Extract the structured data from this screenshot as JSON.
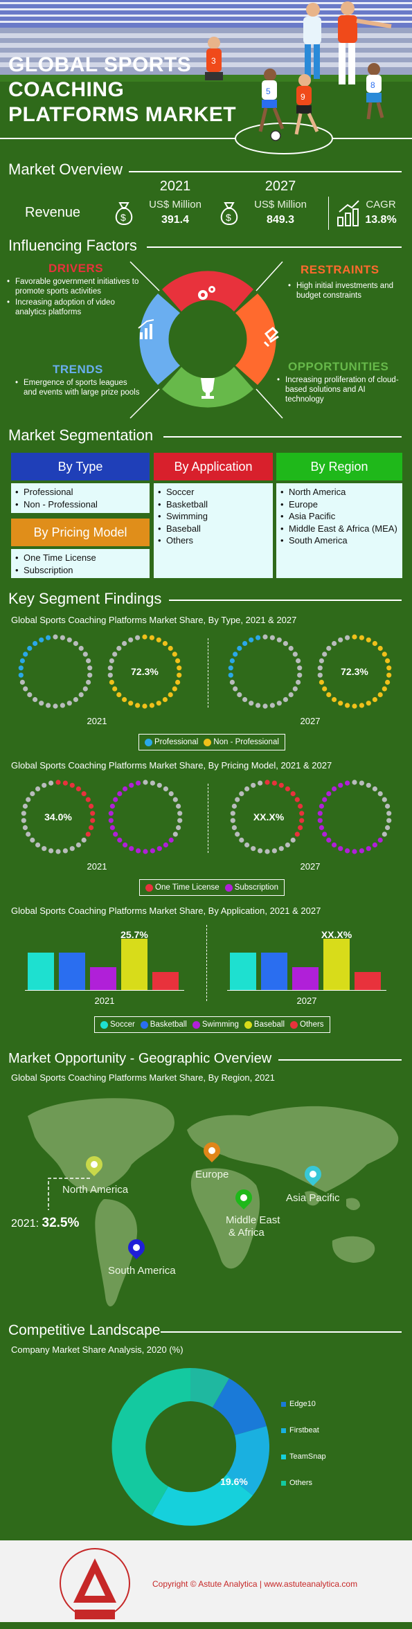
{
  "hero": {
    "title_lines": [
      "GLOBAL SPORTS",
      "COACHING",
      "PLATFORMS MARKET"
    ],
    "jersey_1": "3",
    "jersey_2": "5",
    "jersey_3": "9",
    "jersey_4": "8"
  },
  "overview": {
    "title": "Market Overview",
    "revenue_label": "Revenue",
    "year_2021": "2021",
    "year_2027": "2027",
    "unit_2021": "US$ Million",
    "unit_2027": "US$ Million",
    "value_2021": "391.4",
    "value_2027": "849.3",
    "cagr_label": "CAGR",
    "cagr_value": "13.8%"
  },
  "factors": {
    "title": "Influencing Factors",
    "drivers_head": "DRIVERS",
    "drivers": [
      "Favorable government initiatives to promote sports activities",
      "Increasing adoption of video analytics platforms"
    ],
    "restraints_head": "RESTRAINTS",
    "restraints": [
      "High initial investments and budget constraints"
    ],
    "trends_head": "TRENDS",
    "trends": [
      "Emergence of sports leagues and events with large prize pools"
    ],
    "opportunities_head": "OPPORTUNITIES",
    "opportunities": [
      "Increasing proliferation of cloud-based solutions and AI technology"
    ],
    "colors": {
      "drivers": "#e8323c",
      "restraints": "#ff6a2e",
      "trends": "#6aaef0",
      "opportunities": "#67b94a"
    }
  },
  "segmentation": {
    "title": "Market Segmentation",
    "by_type": {
      "label": "By Type",
      "items": [
        "Professional",
        "Non - Professional"
      ]
    },
    "by_pricing": {
      "label": "By Pricing Model",
      "items": [
        "One Time License",
        "Subscription"
      ]
    },
    "by_application": {
      "label": "By Application",
      "items": [
        "Soccer",
        "Basketball",
        "Swimming",
        "Baseball",
        "Others"
      ]
    },
    "by_region": {
      "label": "By Region",
      "items": [
        "North America",
        "Europe",
        "Asia Pacific",
        "Middle East & Africa (MEA)",
        "South America"
      ]
    }
  },
  "findings": {
    "title": "Key Segment Findings",
    "type_chart_title": "Global Sports Coaching Platforms Market Share, By Type, 2021 & 2027",
    "type_val_2021": "72.3%",
    "type_val_2027": "72.3%",
    "year_a": "2021",
    "year_b": "2027",
    "type_legend": [
      "Professional",
      "Non - Professional"
    ],
    "pricing_chart_title": "Global Sports Coaching Platforms Market Share, By Pricing Model, 2021 & 2027",
    "pricing_val_2021": "34.0%",
    "pricing_val_2027": "XX.X%",
    "pricing_legend": [
      "One Time License",
      "Subscription"
    ],
    "app_chart_title": "Global Sports Coaching Platforms Market Share, By Application, 2021 & 2027",
    "app_val_2021": "25.7%",
    "app_val_2027": "XX.X%",
    "app_legend": [
      "Soccer",
      "Basketball",
      "Swimming",
      "Baseball",
      "Others"
    ]
  },
  "chart_data": [
    {
      "type": "bar",
      "title": "Global Sports Coaching Platforms Market Share, By Application, 2021 & 2027",
      "categories": [
        "Soccer",
        "Basketball",
        "Swimming",
        "Baseball",
        "Others"
      ],
      "series": [
        {
          "name": "2021",
          "values": [
            19.0,
            19.0,
            11.5,
            25.7,
            9.0
          ]
        },
        {
          "name": "2027",
          "values": [
            19.0,
            19.0,
            11.5,
            25.7,
            9.0
          ]
        }
      ],
      "colors": [
        "#1ee0d0",
        "#2a6ef0",
        "#b020d8",
        "#d8dc1a",
        "#e8323c"
      ]
    }
  ],
  "geo": {
    "title": "Market Opportunity - Geographic Overview",
    "chart_title": "Global Sports Coaching Platforms Market Share, By Region, 2021",
    "regions": {
      "north_america": "North America",
      "europe": "Europe",
      "asia_pacific": "Asia Pacific",
      "mea_line1": "Middle East",
      "mea_line2": "& Africa",
      "south_america": "South America"
    },
    "na_share_year": "2021:",
    "na_share_value": "32.5%"
  },
  "competitive": {
    "title": "Competitive Landscape",
    "chart_title": "Company Market Share Analysis, 2020 (%)",
    "teamsnap_value": "19.6%",
    "legend": [
      "Edge10",
      "Firstbeat",
      "TeamSnap",
      "Others"
    ]
  },
  "footer": {
    "copyright": "Copyright © Astute Analytica  |  www.astuteanalytica.com",
    "logo_ring": "Powered by Data | Guided by Intelligence",
    "logo_name_1": "astute",
    "logo_name_2": "ANALYTICA"
  }
}
